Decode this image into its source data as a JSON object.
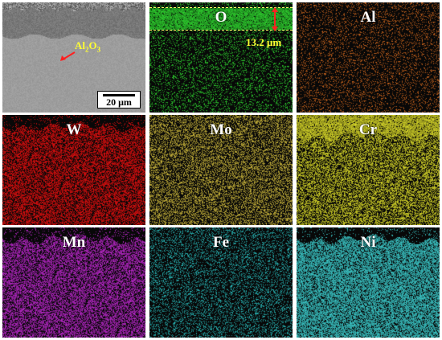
{
  "panels": [
    {
      "id": "sem",
      "label": "",
      "kind": "sem"
    },
    {
      "id": "O",
      "label": "O",
      "color": "#2fd12f",
      "kind": "oxygen"
    },
    {
      "id": "Al",
      "label": "Al",
      "color": "#c8641e",
      "kind": "sparse"
    },
    {
      "id": "W",
      "label": "W",
      "color": "#e01010",
      "kind": "dense-top-dark"
    },
    {
      "id": "Mo",
      "label": "Mo",
      "color": "#c8b43c",
      "kind": "medium"
    },
    {
      "id": "Cr",
      "label": "Cr",
      "color": "#d8d82a",
      "kind": "cr"
    },
    {
      "id": "Mn",
      "label": "Mn",
      "color": "#b828c8",
      "kind": "dense-top-dark"
    },
    {
      "id": "Fe",
      "label": "Fe",
      "color": "#28b4b4",
      "kind": "sparse-med"
    },
    {
      "id": "Ni",
      "label": "Ni",
      "color": "#3cc8c8",
      "kind": "ni"
    }
  ],
  "sem": {
    "annotation_main": "Al",
    "annotation_sub": "2",
    "annotation_main2": "O",
    "annotation_sub2": "3",
    "scalebar_label": "20 μm"
  },
  "oxide": {
    "thickness_label": "13.2 μm"
  }
}
